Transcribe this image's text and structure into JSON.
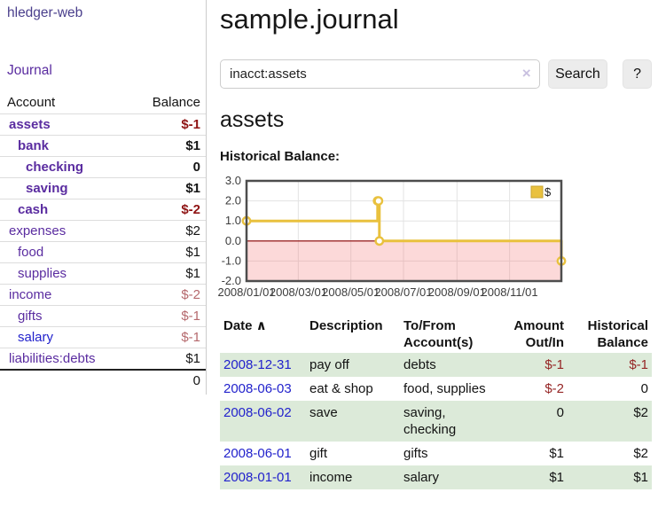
{
  "app": {
    "brand": "hledger-web"
  },
  "sidebar": {
    "nav_journal": "Journal",
    "accounts_table": {
      "headers": {
        "account": "Account",
        "balance": "Balance"
      },
      "rows": [
        {
          "name": "assets",
          "balance": "$-1",
          "depth": 1,
          "bold": true,
          "balance_style": "neg-strong",
          "link_style": "visited"
        },
        {
          "name": "bank",
          "balance": "$1",
          "depth": 2,
          "bold": true,
          "balance_style": "normal",
          "link_style": "visited"
        },
        {
          "name": "checking",
          "balance": "0",
          "depth": 3,
          "bold": true,
          "balance_style": "normal",
          "link_style": "visited"
        },
        {
          "name": "saving",
          "balance": "$1",
          "depth": 3,
          "bold": true,
          "balance_style": "normal",
          "link_style": "visited"
        },
        {
          "name": "cash",
          "balance": "$-2",
          "depth": 2,
          "bold": true,
          "balance_style": "neg-strong",
          "link_style": "visited"
        },
        {
          "name": "expenses",
          "balance": "$2",
          "depth": 1,
          "bold": false,
          "balance_style": "normal",
          "link_style": "visited"
        },
        {
          "name": "food",
          "balance": "$1",
          "depth": 2,
          "bold": false,
          "balance_style": "normal",
          "link_style": "visited"
        },
        {
          "name": "supplies",
          "balance": "$1",
          "depth": 2,
          "bold": false,
          "balance_style": "normal",
          "link_style": "visited"
        },
        {
          "name": "income",
          "balance": "$-2",
          "depth": 1,
          "bold": false,
          "balance_style": "neg-muted",
          "link_style": "visited"
        },
        {
          "name": "gifts",
          "balance": "$-1",
          "depth": 2,
          "bold": false,
          "balance_style": "neg-muted",
          "link_style": "visited"
        },
        {
          "name": "salary",
          "balance": "$-1",
          "depth": 2,
          "bold": false,
          "balance_style": "neg-muted",
          "link_style": "unvisited"
        },
        {
          "name": "liabilities:debts",
          "balance": "$1",
          "depth": 1,
          "bold": false,
          "balance_style": "normal",
          "link_style": "visited"
        }
      ],
      "total": "0"
    }
  },
  "header": {
    "title": "sample.journal"
  },
  "search": {
    "value": "inacct:assets",
    "clear_icon": "×",
    "search_button": "Search",
    "help_button": "?"
  },
  "account_page": {
    "heading": "assets",
    "chart_title": "Historical Balance:"
  },
  "chart_data": {
    "type": "line",
    "step": true,
    "title": "Historical Balance",
    "series": [
      {
        "name": "$",
        "color": "#e9c13e",
        "points": [
          [
            "2008-01-01",
            1
          ],
          [
            "2008-06-01",
            2
          ],
          [
            "2008-06-02",
            2
          ],
          [
            "2008-06-03",
            0
          ],
          [
            "2008-12-31",
            -1
          ]
        ]
      }
    ],
    "x_range": [
      "2008-01-01",
      "2008-12-31"
    ],
    "x_ticks": [
      "2008/01/01",
      "2008/03/01",
      "2008/05/01",
      "2008/07/01",
      "2008/09/01",
      "2008/11/01"
    ],
    "y_ticks": [
      3.0,
      2.0,
      1.0,
      0.0,
      -1.0,
      -2.0
    ],
    "ylim": [
      -2,
      3
    ],
    "grid": true,
    "legend": {
      "label": "$",
      "position": "top-right"
    },
    "negative_region_color": "rgba(244,114,114,0.27)",
    "zero_line_color": "#8b0000",
    "border_color": "#4d4d4d",
    "grid_color": "#e3e3e3"
  },
  "register": {
    "headers": [
      {
        "label": "Date",
        "align": "left",
        "sort_icon": "∧"
      },
      {
        "label": "Description",
        "align": "left"
      },
      {
        "label": "To/From Account(s)",
        "align": "left"
      },
      {
        "label": "Amount Out/In",
        "align": "right"
      },
      {
        "label": "Historical Balance",
        "align": "right"
      }
    ],
    "rows": [
      {
        "date": "2008-12-31",
        "description": "pay off",
        "accounts": "debts",
        "amount": "$-1",
        "amount_neg": true,
        "balance": "$-1",
        "balance_neg": true,
        "shaded": true
      },
      {
        "date": "2008-06-03",
        "description": "eat & shop",
        "accounts": "food, supplies",
        "amount": "$-2",
        "amount_neg": true,
        "balance": "0",
        "balance_neg": false,
        "shaded": false
      },
      {
        "date": "2008-06-02",
        "description": "save",
        "accounts": "saving, checking",
        "amount": "0",
        "amount_neg": false,
        "balance": "$2",
        "balance_neg": false,
        "shaded": true
      },
      {
        "date": "2008-06-01",
        "description": "gift",
        "accounts": "gifts",
        "amount": "$1",
        "amount_neg": false,
        "balance": "$2",
        "balance_neg": false,
        "shaded": false
      },
      {
        "date": "2008-01-01",
        "description": "income",
        "accounts": "salary",
        "amount": "$1",
        "amount_neg": false,
        "balance": "$1",
        "balance_neg": false,
        "shaded": true
      }
    ]
  }
}
